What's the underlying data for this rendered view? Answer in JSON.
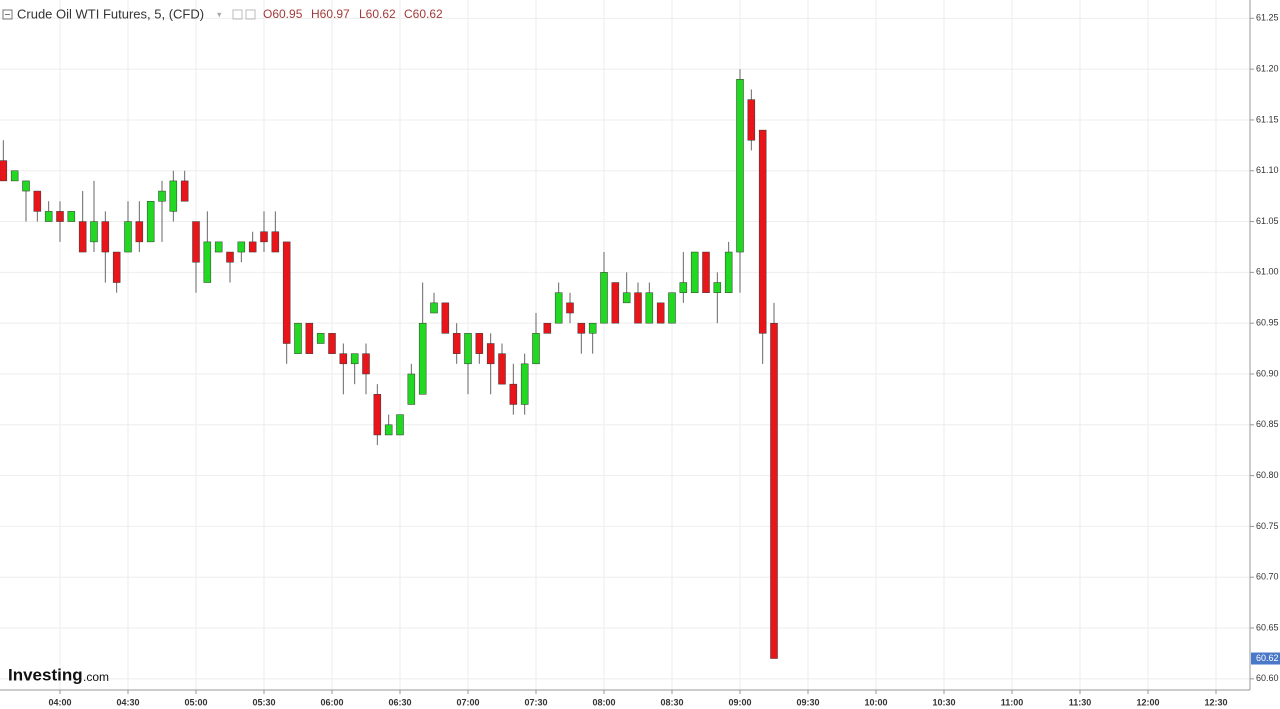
{
  "header": {
    "title": "Crude Oil WTI Futures, 5, (CFD)",
    "ohlc": [
      "O60.95",
      "H60.97",
      "L60.62",
      "C60.62"
    ]
  },
  "logo": {
    "brand": "Investing",
    "suffix": ".com"
  },
  "chart_data": {
    "type": "candlestick",
    "x": [
      "03:35",
      "03:40",
      "03:45",
      "03:50",
      "03:55",
      "04:00",
      "04:05",
      "04:10",
      "04:15",
      "04:20",
      "04:25",
      "04:30",
      "04:35",
      "04:40",
      "04:45",
      "04:50",
      "04:55",
      "05:00",
      "05:05",
      "05:10",
      "05:15",
      "05:20",
      "05:25",
      "05:30",
      "05:35",
      "05:40",
      "05:45",
      "05:50",
      "05:55",
      "06:00",
      "06:05",
      "06:10",
      "06:15",
      "06:20",
      "06:25",
      "06:30",
      "06:35",
      "06:40",
      "06:45",
      "06:50",
      "06:55",
      "07:00",
      "07:05",
      "07:10",
      "07:15",
      "07:20",
      "07:25",
      "07:30",
      "07:35",
      "07:40",
      "07:45",
      "07:50",
      "07:55",
      "08:00",
      "08:05",
      "08:10",
      "08:15",
      "08:20",
      "08:25",
      "08:30",
      "08:35",
      "08:40",
      "08:45",
      "08:50",
      "08:55",
      "09:00",
      "09:05",
      "09:10",
      "09:15"
    ],
    "open": [
      61.11,
      61.09,
      61.08,
      61.08,
      61.05,
      61.06,
      61.05,
      61.05,
      61.03,
      61.05,
      61.02,
      61.02,
      61.05,
      61.03,
      61.07,
      61.06,
      61.09,
      61.05,
      60.99,
      61.02,
      61.02,
      61.02,
      61.03,
      61.04,
      61.04,
      61.03,
      60.92,
      60.95,
      60.93,
      60.94,
      60.92,
      60.91,
      60.92,
      60.88,
      60.84,
      60.84,
      60.87,
      60.88,
      60.96,
      60.97,
      60.94,
      60.91,
      60.94,
      60.93,
      60.92,
      60.89,
      60.87,
      60.91,
      60.95,
      60.95,
      60.97,
      60.95,
      60.94,
      60.95,
      60.99,
      60.97,
      60.98,
      60.95,
      60.97,
      60.95,
      60.98,
      60.98,
      61.02,
      60.98,
      60.98,
      61.02,
      61.17,
      61.14,
      60.95
    ],
    "high": [
      61.13,
      61.1,
      61.09,
      61.08,
      61.07,
      61.07,
      61.06,
      61.08,
      61.09,
      61.06,
      61.02,
      61.07,
      61.07,
      61.07,
      61.09,
      61.1,
      61.1,
      61.05,
      61.06,
      61.03,
      61.02,
      61.03,
      61.04,
      61.06,
      61.06,
      61.03,
      60.95,
      60.95,
      60.94,
      60.94,
      60.93,
      60.92,
      60.93,
      60.89,
      60.86,
      60.86,
      60.91,
      60.99,
      60.98,
      60.97,
      60.95,
      60.94,
      60.94,
      60.94,
      60.93,
      60.91,
      60.92,
      60.96,
      60.95,
      60.99,
      60.98,
      60.95,
      60.95,
      61.02,
      60.99,
      61.0,
      60.99,
      60.99,
      60.97,
      60.98,
      61.02,
      61.02,
      61.02,
      61.0,
      61.03,
      61.2,
      61.18,
      61.14,
      60.97
    ],
    "low": [
      61.09,
      61.09,
      61.05,
      61.05,
      61.05,
      61.03,
      61.05,
      61.02,
      61.02,
      60.99,
      60.98,
      61.02,
      61.02,
      61.03,
      61.03,
      61.05,
      61.07,
      60.98,
      60.99,
      61.02,
      60.99,
      61.01,
      61.02,
      61.02,
      61.02,
      60.91,
      60.92,
      60.92,
      60.93,
      60.92,
      60.88,
      60.89,
      60.88,
      60.83,
      60.84,
      60.84,
      60.87,
      60.88,
      60.96,
      60.94,
      60.91,
      60.88,
      60.91,
      60.88,
      60.89,
      60.86,
      60.86,
      60.91,
      60.94,
      60.95,
      60.95,
      60.92,
      60.92,
      60.95,
      60.95,
      60.97,
      60.95,
      60.95,
      60.95,
      60.95,
      60.97,
      60.98,
      60.98,
      60.95,
      60.98,
      60.98,
      61.12,
      60.91,
      60.62
    ],
    "close": [
      61.09,
      61.1,
      61.09,
      61.06,
      61.06,
      61.05,
      61.06,
      61.02,
      61.05,
      61.02,
      60.99,
      61.05,
      61.03,
      61.07,
      61.08,
      61.09,
      61.07,
      61.01,
      61.03,
      61.03,
      61.01,
      61.03,
      61.02,
      61.03,
      61.02,
      60.93,
      60.95,
      60.92,
      60.94,
      60.92,
      60.91,
      60.92,
      60.9,
      60.84,
      60.85,
      60.86,
      60.9,
      60.95,
      60.97,
      60.94,
      60.92,
      60.94,
      60.92,
      60.91,
      60.89,
      60.87,
      60.91,
      60.94,
      60.94,
      60.98,
      60.96,
      60.94,
      60.95,
      61.0,
      60.95,
      60.98,
      60.95,
      60.98,
      60.95,
      60.98,
      60.99,
      61.02,
      60.98,
      60.99,
      61.02,
      61.19,
      61.13,
      60.94,
      60.62
    ],
    "up_color": "#22d822",
    "down_color": "#e8161b",
    "last_price": 60.62,
    "ylim": [
      60.59,
      61.27
    ],
    "yticks": [
      {
        "value": 60.6,
        "label": "60.60"
      },
      60.65,
      {
        "value": 60.7,
        "label": "60.70"
      },
      60.75,
      {
        "value": 60.8,
        "label": "60.80"
      },
      60.85,
      {
        "value": 60.9,
        "label": "60.90"
      },
      60.95,
      {
        "value": 61,
        "label": "61.00"
      },
      61.05,
      {
        "value": 61.1,
        "label": "61.10"
      },
      61.15,
      {
        "value": 61.2,
        "label": "61.20"
      },
      61.25
    ],
    "xticks": [
      "04:00",
      "04:30",
      "05:00",
      "05:30",
      "06:00",
      "06:30",
      "07:00",
      "07:30",
      "08:00",
      "08:30",
      "09:00",
      "09:30",
      "10:00",
      "10:30",
      "11:00",
      "11:30",
      "12:00",
      "12:30"
    ],
    "grid": true
  }
}
